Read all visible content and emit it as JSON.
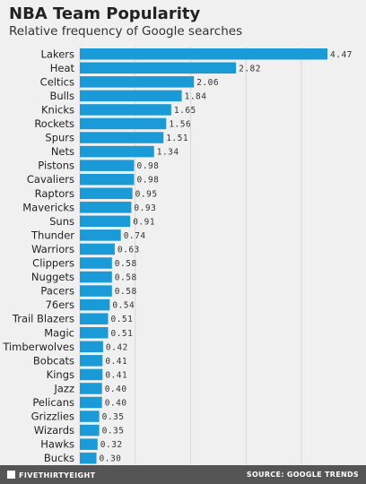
{
  "chart_data": {
    "type": "bar",
    "orientation": "horizontal",
    "title": "NBA Team Popularity",
    "subtitle": "Relative frequency of Google searches",
    "categories": [
      "Lakers",
      "Heat",
      "Celtics",
      "Bulls",
      "Knicks",
      "Rockets",
      "Spurs",
      "Nets",
      "Pistons",
      "Cavaliers",
      "Raptors",
      "Mavericks",
      "Suns",
      "Thunder",
      "Warriors",
      "Clippers",
      "Nuggets",
      "Pacers",
      "76ers",
      "Trail Blazers",
      "Magic",
      "Timberwolves",
      "Bobcats",
      "Kings",
      "Jazz",
      "Pelicans",
      "Grizzlies",
      "Wizards",
      "Hawks",
      "Bucks"
    ],
    "values": [
      4.47,
      2.82,
      2.06,
      1.84,
      1.65,
      1.56,
      1.51,
      1.34,
      0.98,
      0.98,
      0.95,
      0.93,
      0.91,
      0.74,
      0.63,
      0.58,
      0.58,
      0.58,
      0.54,
      0.51,
      0.51,
      0.42,
      0.41,
      0.41,
      0.4,
      0.4,
      0.35,
      0.35,
      0.32,
      0.3
    ],
    "value_labels": [
      "4.47",
      "2.82",
      "2.06",
      "1.84",
      "1.65",
      "1.56",
      "1.51",
      "1.34",
      "0.98",
      "0.98",
      "0.95",
      "0.93",
      "0.91",
      "0.74",
      "0.63",
      "0.58",
      "0.58",
      "0.58",
      "0.54",
      "0.51",
      "0.51",
      "0.42",
      "0.41",
      "0.41",
      "0.40",
      "0.40",
      "0.35",
      "0.35",
      "0.32",
      "0.30"
    ],
    "xlim": [
      0,
      4.47
    ],
    "grid": true,
    "bar_color": "#1a9ad6"
  },
  "footer": {
    "brand": "FIVETHIRTYEIGHT",
    "source": "SOURCE: GOOGLE TRENDS"
  }
}
